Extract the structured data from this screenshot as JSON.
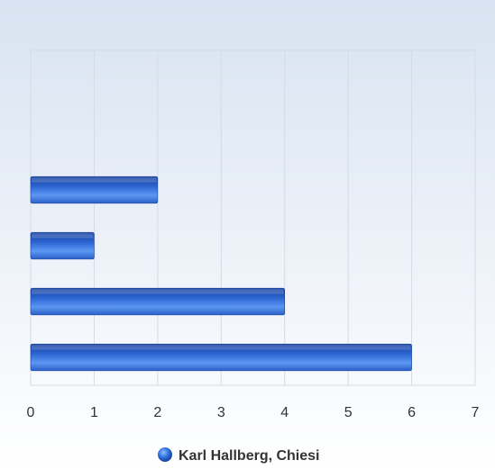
{
  "chart_data": {
    "type": "bar",
    "orientation": "horizontal",
    "categories": [
      "",
      "",
      "",
      "",
      "",
      ""
    ],
    "series": [
      {
        "name": "Karl Hallberg, Chiesi",
        "values": [
          0,
          0,
          2,
          1,
          4,
          6
        ],
        "color": "#2b6fd6"
      }
    ],
    "xlim": [
      0,
      7
    ],
    "xticks": [
      "0",
      "1",
      "2",
      "3",
      "4",
      "5",
      "6",
      "7"
    ],
    "grid": true,
    "legend_position": "bottom"
  },
  "colors": {
    "background_top": "#d8e3f1",
    "background_bottom": "#ffffff",
    "bar_dark": "#163f9c",
    "bar_light": "#6ea8f7",
    "grid": "#d4dbe5"
  }
}
